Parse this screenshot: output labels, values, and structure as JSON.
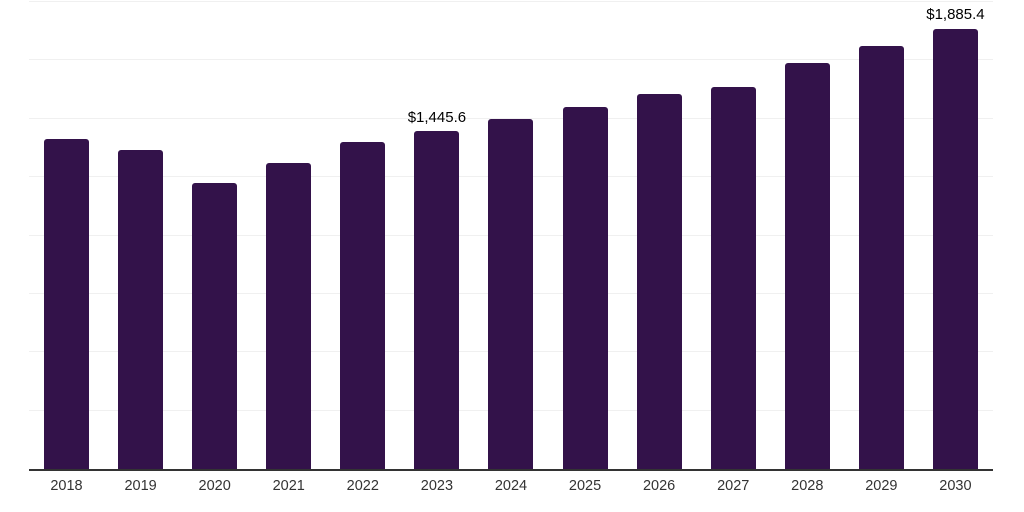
{
  "chart_data": {
    "type": "bar",
    "title": "",
    "xlabel": "",
    "ylabel": "",
    "categories": [
      "2018",
      "2019",
      "2020",
      "2021",
      "2022",
      "2023",
      "2024",
      "2025",
      "2026",
      "2027",
      "2028",
      "2029",
      "2030"
    ],
    "values": [
      1413,
      1366,
      1224,
      1310,
      1400,
      1445.6,
      1501,
      1551,
      1605,
      1635,
      1738,
      1811,
      1885.4
    ],
    "data_labels": [
      {
        "category": "2023",
        "text": "$1,445.6"
      },
      {
        "category": "2030",
        "text": "$1,885.4"
      }
    ],
    "ylim": [
      0,
      2000
    ],
    "gridline_interval": 250,
    "grid": true,
    "legend": false,
    "y_axis_labels_visible": false,
    "bar_color": "#33124A",
    "axis_line_color": "#333333",
    "gridline_color": "#f0f0f0",
    "x_label_color": "#333333",
    "data_label_color": "#000000",
    "background_color": "#ffffff"
  }
}
